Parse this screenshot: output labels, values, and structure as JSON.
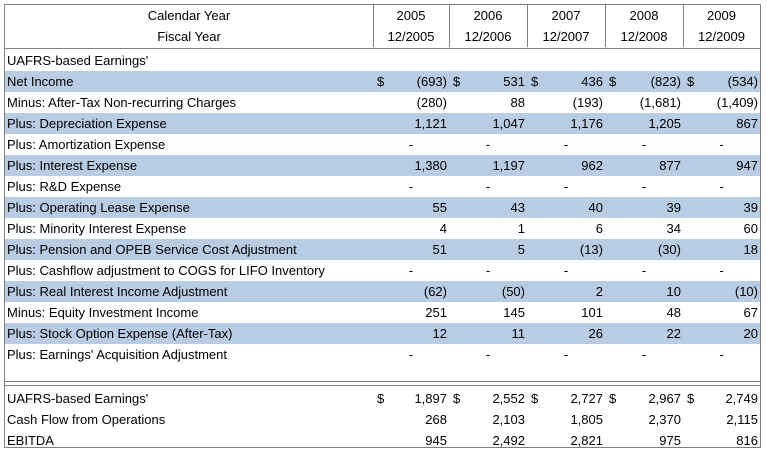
{
  "header": {
    "calendar_label": "Calendar Year",
    "fiscal_label": "Fiscal Year",
    "years": [
      "2005",
      "2006",
      "2007",
      "2008",
      "2009"
    ],
    "fiscal_years": [
      "12/2005",
      "12/2006",
      "12/2007",
      "12/2008",
      "12/2009"
    ]
  },
  "section_title": "UAFRS-based Earnings'",
  "rows": [
    {
      "label": "Net Income",
      "dollar": true,
      "values": [
        "(693)",
        "531",
        "436",
        "(823)",
        "(534)"
      ]
    },
    {
      "label": "Minus: After-Tax Non-recurring Charges",
      "values": [
        "(280)",
        "88",
        "(193)",
        "(1,681)",
        "(1,409)"
      ]
    },
    {
      "label": "Plus: Depreciation Expense",
      "values": [
        "1,121",
        "1,047",
        "1,176",
        "1,205",
        "867"
      ]
    },
    {
      "label": "Plus: Amortization Expense",
      "values": [
        "-",
        "-",
        "-",
        "-",
        "-"
      ]
    },
    {
      "label": "Plus: Interest Expense",
      "values": [
        "1,380",
        "1,197",
        "962",
        "877",
        "947"
      ]
    },
    {
      "label": "Plus: R&D Expense",
      "values": [
        "-",
        "-",
        "-",
        "-",
        "-"
      ]
    },
    {
      "label": "Plus: Operating Lease Expense",
      "values": [
        "55",
        "43",
        "40",
        "39",
        "39"
      ]
    },
    {
      "label": "Plus: Minority Interest Expense",
      "values": [
        "4",
        "1",
        "6",
        "34",
        "60"
      ]
    },
    {
      "label": "Plus: Pension and OPEB Service Cost Adjustment",
      "values": [
        "51",
        "5",
        "(13)",
        "(30)",
        "18"
      ]
    },
    {
      "label": "Plus: Cashflow adjustment to COGS for LIFO Inventory",
      "values": [
        "-",
        "-",
        "-",
        "-",
        "-"
      ]
    },
    {
      "label": "Plus: Real Interest Income Adjustment",
      "values": [
        "(62)",
        "(50)",
        "2",
        "10",
        "(10)"
      ]
    },
    {
      "label": "Minus: Equity Investment Income",
      "values": [
        "251",
        "145",
        "101",
        "48",
        "67"
      ]
    },
    {
      "label": "Plus: Stock Option Expense (After-Tax)",
      "values": [
        "12",
        "11",
        "26",
        "22",
        "20"
      ]
    },
    {
      "label": "Plus: Earnings' Acquisition Adjustment",
      "values": [
        "-",
        "-",
        "-",
        "-",
        "-"
      ]
    }
  ],
  "summary": [
    {
      "label": "UAFRS-based Earnings'",
      "dollar": true,
      "values": [
        "1,897",
        "2,552",
        "2,727",
        "2,967",
        "2,749"
      ]
    },
    {
      "label": "Cash Flow from Operations",
      "values": [
        "268",
        "2,103",
        "1,805",
        "2,370",
        "2,115"
      ]
    },
    {
      "label": "EBITDA",
      "values": [
        "945",
        "2,492",
        "2,821",
        "975",
        "816"
      ]
    }
  ],
  "currency_symbol": "$",
  "colors": {
    "shade": "#b8cce4",
    "grid": "#7f7f7f"
  }
}
